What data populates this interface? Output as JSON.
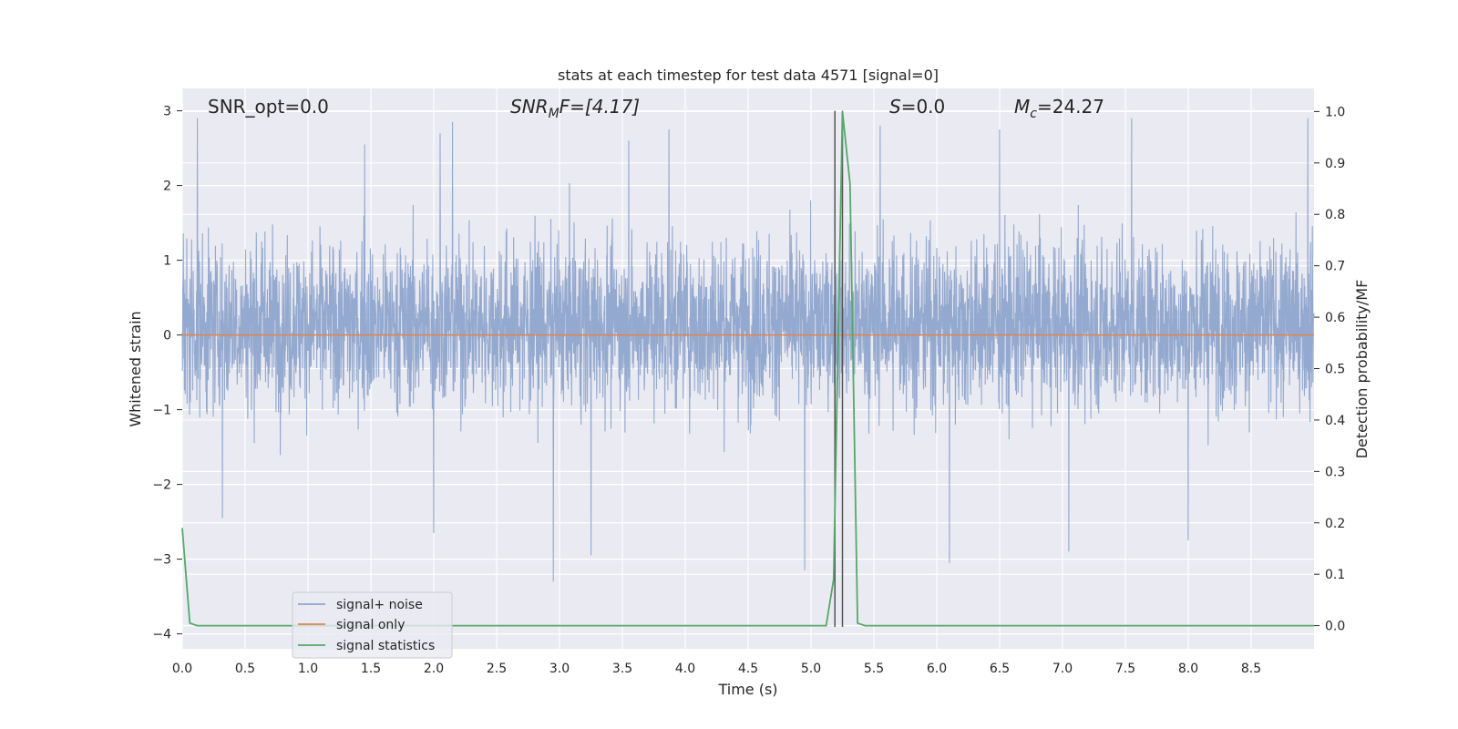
{
  "chart_data": {
    "type": "line",
    "title": "stats at each timestep for test data 4571 [signal=0]",
    "xlabel": "Time (s)",
    "ylabel": "Whitened strain",
    "y2label": "Detection probability/MF",
    "xlim": [
      0,
      9.0
    ],
    "ylim": [
      -4.2,
      3.3
    ],
    "y2lim": [
      -0.045,
      1.045
    ],
    "xticks": [
      "0.0",
      "0.5",
      "1.0",
      "1.5",
      "2.0",
      "2.5",
      "3.0",
      "3.5",
      "4.0",
      "4.5",
      "5.0",
      "5.5",
      "6.0",
      "6.5",
      "7.0",
      "7.5",
      "8.0",
      "8.5"
    ],
    "yticks": [
      "3",
      "2",
      "1",
      "0",
      "−1",
      "−2",
      "−3",
      "−4"
    ],
    "y2ticks": [
      "1.0",
      "0.9",
      "0.8",
      "0.7",
      "0.6",
      "0.5",
      "0.4",
      "0.3",
      "0.2",
      "0.1",
      "0.0"
    ],
    "grid": true,
    "legend_position": "lower-left",
    "annotations": {
      "snr_opt": "SNR_opt=0.0",
      "snr_mf_main": "SNR",
      "snr_mf_sub": "M",
      "snr_mf_rest": "F=[4.17]",
      "s_main": "S",
      "s_rest": "=0.0",
      "mc_main": "M",
      "mc_sub": "c",
      "mc_rest": "=24.27"
    },
    "series": [
      {
        "name": "signal+ noise",
        "color": "#8fa5cc",
        "description_values": {
          "typical_envelope": [
            -1.2,
            1.55
          ],
          "extreme_range": [
            -3.3,
            2.95
          ],
          "large_spikes": [
            {
              "x": 0.12,
              "y": 2.9
            },
            {
              "x": 0.32,
              "y": -2.45
            },
            {
              "x": 1.45,
              "y": 2.55
            },
            {
              "x": 2.0,
              "y": -2.65
            },
            {
              "x": 2.05,
              "y": 2.7
            },
            {
              "x": 2.15,
              "y": 2.85
            },
            {
              "x": 2.95,
              "y": -3.3
            },
            {
              "x": 3.25,
              "y": -2.95
            },
            {
              "x": 3.55,
              "y": 2.6
            },
            {
              "x": 3.87,
              "y": 2.75
            },
            {
              "x": 4.95,
              "y": -3.15
            },
            {
              "x": 5.55,
              "y": 2.8
            },
            {
              "x": 6.1,
              "y": -3.05
            },
            {
              "x": 6.5,
              "y": 2.75
            },
            {
              "x": 7.05,
              "y": -2.9
            },
            {
              "x": 7.55,
              "y": 2.9
            },
            {
              "x": 8.0,
              "y": -2.75
            },
            {
              "x": 8.95,
              "y": 2.9
            }
          ]
        }
      },
      {
        "name": "signal only",
        "color": "#dd8452",
        "x": [
          0.0,
          9.0
        ],
        "y": [
          0.0,
          0.0
        ]
      },
      {
        "name": "signal statistics",
        "color": "#55a868",
        "axis": "right",
        "x": [
          0.0,
          0.06,
          0.12,
          1.0,
          2.0,
          3.0,
          4.0,
          5.0,
          5.12,
          5.18,
          5.25,
          5.31,
          5.37,
          5.43,
          6.0,
          7.0,
          8.0,
          9.0
        ],
        "y": [
          0.19,
          0.005,
          0.0,
          0.0,
          0.0,
          0.0,
          0.0,
          0.0,
          0.0,
          0.09,
          1.0,
          0.86,
          0.005,
          0.0,
          0.0,
          0.0,
          0.0,
          0.0
        ]
      }
    ],
    "vlines": [
      {
        "x": 5.19,
        "color": "#555555"
      },
      {
        "x": 5.25,
        "color": "#555555"
      }
    ]
  }
}
